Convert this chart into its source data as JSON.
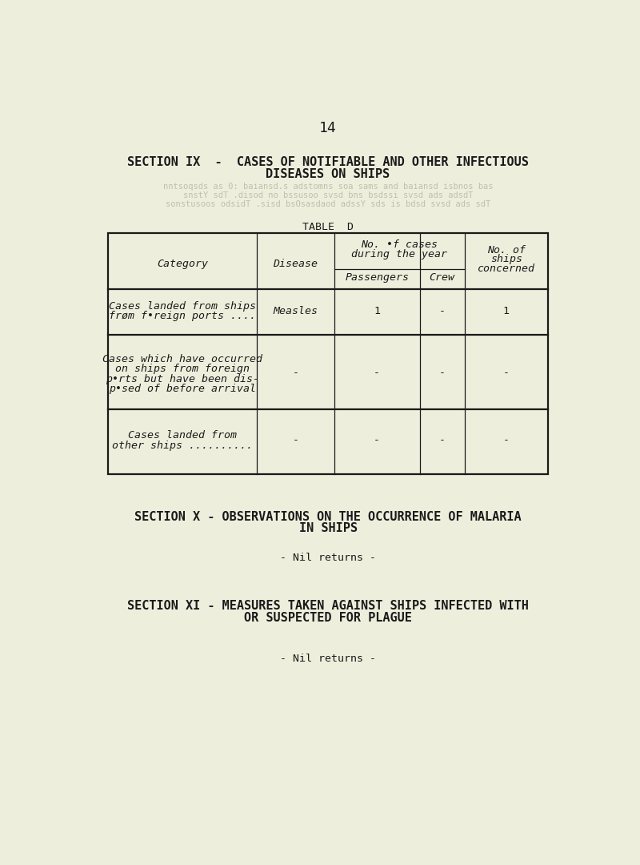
{
  "background_color": "#eeeedd",
  "text_color": "#1a1a1a",
  "page_number": "14",
  "section_ix_line1": "SECTION IX  -  CASES OF NOTIFIABLE AND OTHER INFECTIOUS",
  "section_ix_line2": "DISEASES ON SHIPS",
  "table_title": "TABLE  D",
  "header_category": "Category",
  "header_disease": "Disease",
  "header_no_cases_line1": "No. •f cases",
  "header_no_cases_line2": "during the year",
  "header_passengers": "Passengers",
  "header_crew": "Crew",
  "header_no_ships_line1": "No. of",
  "header_no_ships_line2": "ships",
  "header_no_ships_line3": "concerned",
  "row1_cat_line1": "Cases landed from ships",
  "row1_cat_line2": "frøm f•reign ports ....",
  "row1_disease": "Measles",
  "row1_passengers": "1",
  "row1_crew": "-",
  "row1_ships": "1",
  "row2_cat_line1": "Cases which have occurred",
  "row2_cat_line2": "on ships from foreign",
  "row2_cat_line3": "p•rts but have been dis-",
  "row2_cat_line4": "p•sed of before arrival",
  "row2_disease": "-",
  "row2_passengers": "-",
  "row2_crew": "-",
  "row2_ships": "-",
  "row3_cat_line1": "Cases landed from",
  "row3_cat_line2": "other ships ..........",
  "row3_disease": "-",
  "row3_passengers": "-",
  "row3_crew": "-",
  "row3_ships": "-",
  "section_x_line1": "SECTION X - OBSERVATIONS ON THE OCCURRENCE OF MALARIA",
  "section_x_line2": "IN SHIPS",
  "nil_x": "- Nil returns -",
  "section_xi_line1": "SECTION XI - MEASURES TAKEN AGAINST SHIPS INFECTED WITH",
  "section_xi_line2": "OR SUSPECTED FOR PLAGUE",
  "nil_xi": "- Nil returns -",
  "ghost_lines": [
    "nntsoqsds as 0: baiansd.s adstomns soa sams and baiansd isbnos bas",
    "snstY sdT .disod no bssusoo svsd bns bsdssi svsd ads adsdT",
    "sonstusoos odsidT .sisd bsOsasdaod adssY sds is bdsd svsd ads sdT"
  ],
  "font_family": "DejaVu Sans Mono",
  "font_size_pagenum": 13,
  "font_size_title": 11,
  "font_size_table": 9.5,
  "font_size_ghost": 7.5
}
